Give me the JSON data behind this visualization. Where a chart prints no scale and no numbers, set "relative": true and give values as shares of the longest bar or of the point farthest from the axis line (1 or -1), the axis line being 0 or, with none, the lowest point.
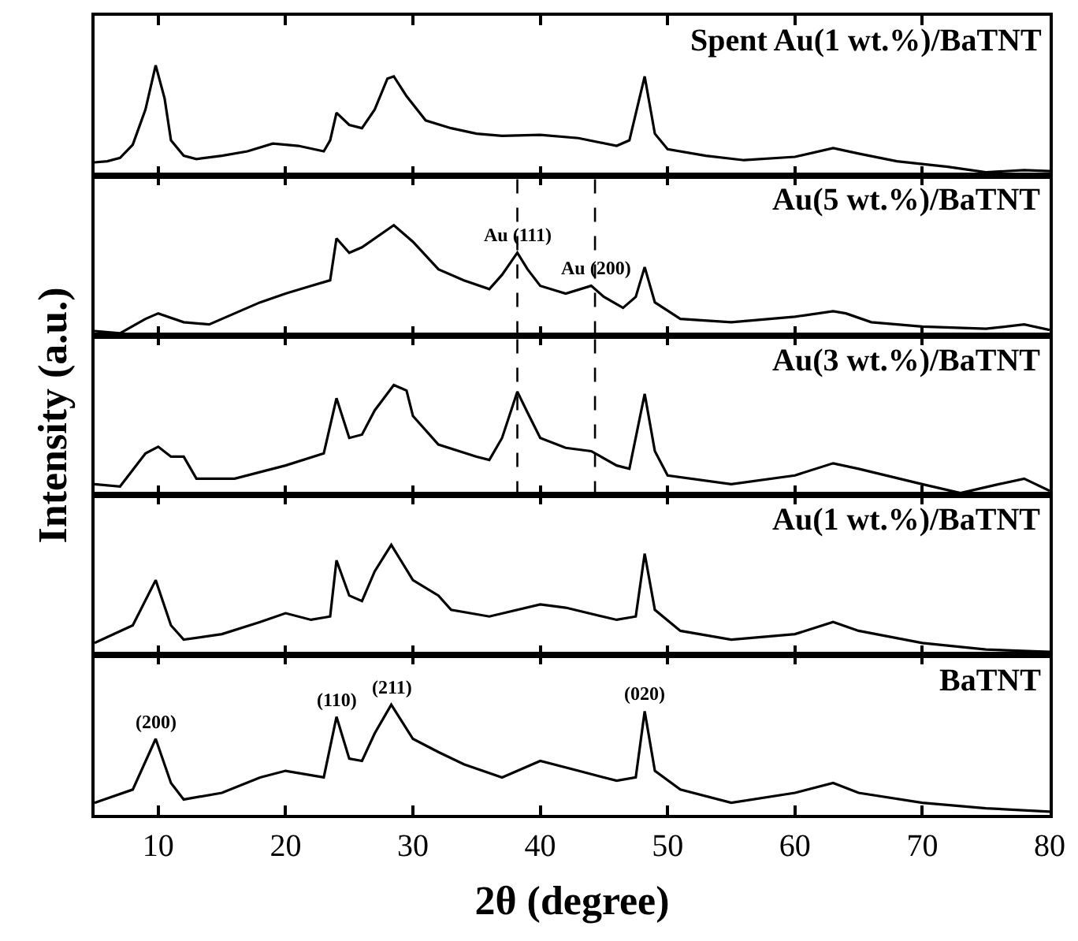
{
  "chart_data": [
    {
      "type": "line",
      "title": "Spent Au(1 wt.%)/BaTNT",
      "relative": true,
      "xlim": [
        5,
        80
      ],
      "xticks": [
        10,
        20,
        30,
        40,
        50,
        60,
        70,
        80
      ],
      "tick_labels": false,
      "series": [
        {
          "color": "#000000",
          "x": [
            5,
            6,
            7,
            8,
            9,
            9.8,
            10.5,
            11,
            12,
            13,
            15,
            17,
            19,
            21,
            23,
            23.5,
            24,
            25,
            26,
            27,
            28,
            28.5,
            29.5,
            31,
            33,
            35,
            37,
            40,
            43,
            46,
            47,
            48.2,
            49,
            50,
            53,
            56,
            60,
            63,
            65,
            68,
            72,
            75,
            78,
            80
          ],
          "values": [
            0.12,
            0.13,
            0.16,
            0.28,
            0.6,
            1.0,
            0.7,
            0.32,
            0.18,
            0.15,
            0.18,
            0.22,
            0.29,
            0.27,
            0.22,
            0.32,
            0.57,
            0.46,
            0.43,
            0.6,
            0.88,
            0.9,
            0.72,
            0.5,
            0.43,
            0.38,
            0.36,
            0.37,
            0.34,
            0.27,
            0.32,
            0.9,
            0.38,
            0.24,
            0.18,
            0.14,
            0.17,
            0.25,
            0.2,
            0.13,
            0.08,
            0.03,
            0.05,
            0.04
          ]
        }
      ]
    },
    {
      "type": "line",
      "title": "Au(5 wt.%)/BaTNT",
      "relative": true,
      "xlim": [
        5,
        80
      ],
      "xticks": [
        10,
        20,
        30,
        40,
        50,
        60,
        70,
        80
      ],
      "tick_labels": false,
      "annotations": [
        {
          "text": "Au (111)",
          "x": 38.2,
          "y": 0.75
        },
        {
          "text": "Au (200)",
          "x": 44.3,
          "y": 0.45
        }
      ],
      "ref_lines": [
        {
          "axis": "x",
          "value": 38.2,
          "color": "#000000",
          "line_style": "dashed"
        },
        {
          "axis": "x",
          "value": 44.3,
          "color": "#000000",
          "line_style": "dashed"
        }
      ],
      "series": [
        {
          "color": "#000000",
          "x": [
            5,
            7,
            9,
            10,
            12,
            14,
            16,
            18,
            20,
            22,
            23.5,
            24,
            25,
            26,
            28.5,
            30,
            32,
            34,
            36,
            37,
            38.2,
            39,
            40,
            42,
            44,
            45,
            46.5,
            47.5,
            48.2,
            49,
            51,
            55,
            60,
            63,
            64,
            66,
            70,
            75,
            78,
            80
          ],
          "values": [
            0.04,
            0.02,
            0.15,
            0.2,
            0.12,
            0.1,
            0.2,
            0.3,
            0.38,
            0.45,
            0.5,
            0.88,
            0.75,
            0.8,
            1.0,
            0.85,
            0.6,
            0.5,
            0.42,
            0.55,
            0.75,
            0.6,
            0.45,
            0.38,
            0.45,
            0.35,
            0.25,
            0.35,
            0.62,
            0.3,
            0.15,
            0.12,
            0.17,
            0.22,
            0.2,
            0.12,
            0.08,
            0.06,
            0.1,
            0.05
          ]
        }
      ]
    },
    {
      "type": "line",
      "title": "Au(3 wt.%)/BaTNT",
      "ylabel": "Intensity (a.u.)",
      "relative": true,
      "xlim": [
        5,
        80
      ],
      "xticks": [
        10,
        20,
        30,
        40,
        50,
        60,
        70,
        80
      ],
      "tick_labels": false,
      "ref_lines": [
        {
          "axis": "x",
          "value": 38.2,
          "color": "#000000",
          "line_style": "dashed"
        },
        {
          "axis": "x",
          "value": 44.3,
          "color": "#000000",
          "line_style": "dashed"
        }
      ],
      "series": [
        {
          "color": "#000000",
          "x": [
            5,
            7,
            9,
            10,
            11,
            12,
            13,
            16,
            20,
            23,
            24,
            25,
            26,
            27,
            28.5,
            29.5,
            30,
            32,
            35,
            36,
            37,
            38.2,
            39,
            40,
            42,
            44,
            46,
            47,
            48.2,
            49,
            50,
            55,
            60,
            63,
            65,
            70,
            73,
            76,
            78,
            80
          ],
          "values": [
            0.1,
            0.08,
            0.38,
            0.44,
            0.35,
            0.35,
            0.15,
            0.15,
            0.27,
            0.38,
            0.88,
            0.52,
            0.55,
            0.77,
            1.0,
            0.95,
            0.72,
            0.46,
            0.35,
            0.32,
            0.52,
            0.94,
            0.75,
            0.52,
            0.43,
            0.4,
            0.27,
            0.24,
            0.92,
            0.4,
            0.18,
            0.1,
            0.18,
            0.29,
            0.24,
            0.1,
            0.02,
            0.1,
            0.15,
            0.04
          ]
        }
      ]
    },
    {
      "type": "line",
      "title": "Au(1 wt.%)/BaTNT",
      "relative": true,
      "xlim": [
        5,
        80
      ],
      "xticks": [
        10,
        20,
        30,
        40,
        50,
        60,
        70,
        80
      ],
      "tick_labels": false,
      "series": [
        {
          "color": "#000000",
          "x": [
            5,
            8,
            9.8,
            11,
            12,
            15,
            18,
            20,
            22,
            23.5,
            24,
            25,
            26,
            27,
            28.3,
            30,
            32,
            33,
            36,
            40,
            42,
            46,
            47.5,
            48.2,
            49,
            51,
            55,
            60,
            63,
            65,
            70,
            75,
            80
          ],
          "values": [
            0.11,
            0.27,
            0.68,
            0.27,
            0.14,
            0.19,
            0.3,
            0.38,
            0.32,
            0.35,
            0.86,
            0.54,
            0.49,
            0.76,
            1.0,
            0.68,
            0.54,
            0.41,
            0.35,
            0.46,
            0.43,
            0.32,
            0.35,
            0.92,
            0.41,
            0.22,
            0.14,
            0.19,
            0.3,
            0.22,
            0.11,
            0.05,
            0.03
          ]
        }
      ]
    },
    {
      "type": "line",
      "title": "BaTNT",
      "xlabel": "2θ (degree)",
      "relative": true,
      "xlim": [
        5,
        80
      ],
      "xticks": [
        10,
        20,
        30,
        40,
        50,
        60,
        70,
        80
      ],
      "tick_labels": "x",
      "annotations": [
        {
          "text": "(200)",
          "x": 9.8,
          "y": 0.69
        },
        {
          "text": "(110)",
          "x": 24,
          "y": 0.89
        },
        {
          "text": "(211)",
          "x": 28.3,
          "y": 1.0
        },
        {
          "text": "(020)",
          "x": 48.2,
          "y": 0.94
        }
      ],
      "series": [
        {
          "color": "#000000",
          "x": [
            5,
            8,
            9.8,
            11,
            12,
            15,
            18,
            20,
            23,
            24,
            25,
            26,
            27,
            28.3,
            30,
            32,
            34,
            37,
            40,
            43,
            46,
            47.5,
            48.2,
            49,
            51,
            55,
            60,
            63,
            65,
            70,
            75,
            80
          ],
          "values": [
            0.11,
            0.23,
            0.69,
            0.29,
            0.14,
            0.2,
            0.34,
            0.4,
            0.34,
            0.89,
            0.51,
            0.49,
            0.74,
            1.0,
            0.69,
            0.57,
            0.46,
            0.34,
            0.49,
            0.4,
            0.31,
            0.34,
            0.94,
            0.4,
            0.23,
            0.11,
            0.2,
            0.29,
            0.2,
            0.11,
            0.06,
            0.03
          ]
        }
      ]
    }
  ]
}
